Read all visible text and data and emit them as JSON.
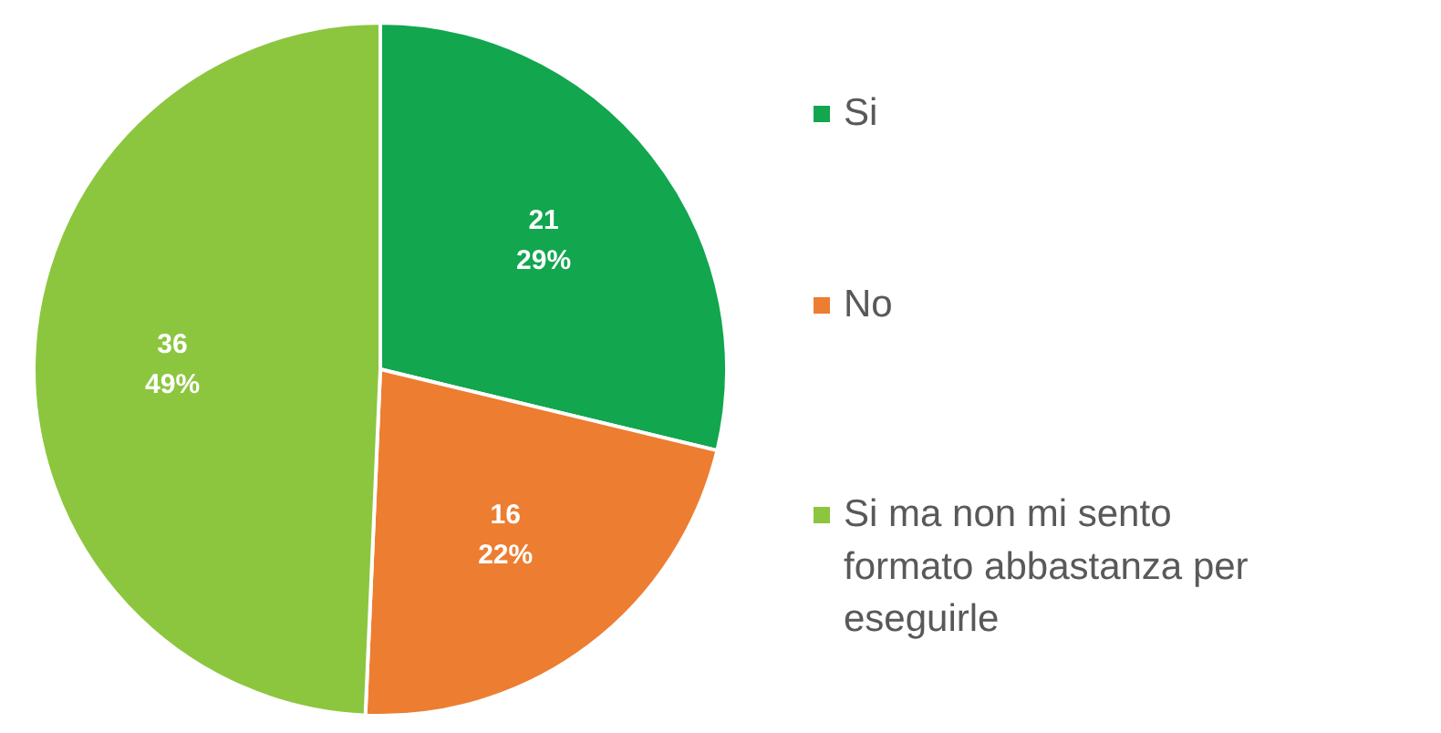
{
  "chart_data": {
    "type": "pie",
    "categories": [
      "Si",
      "No",
      "Si ma non mi sento formato abbastanza per eseguirle"
    ],
    "values": [
      21,
      16,
      36
    ],
    "colors": [
      "#12a64e",
      "#ed7d31",
      "#8cc63f"
    ],
    "value_labels": [
      "21\n29%",
      "16\n22%",
      "36\n49%"
    ],
    "legend": "right"
  }
}
